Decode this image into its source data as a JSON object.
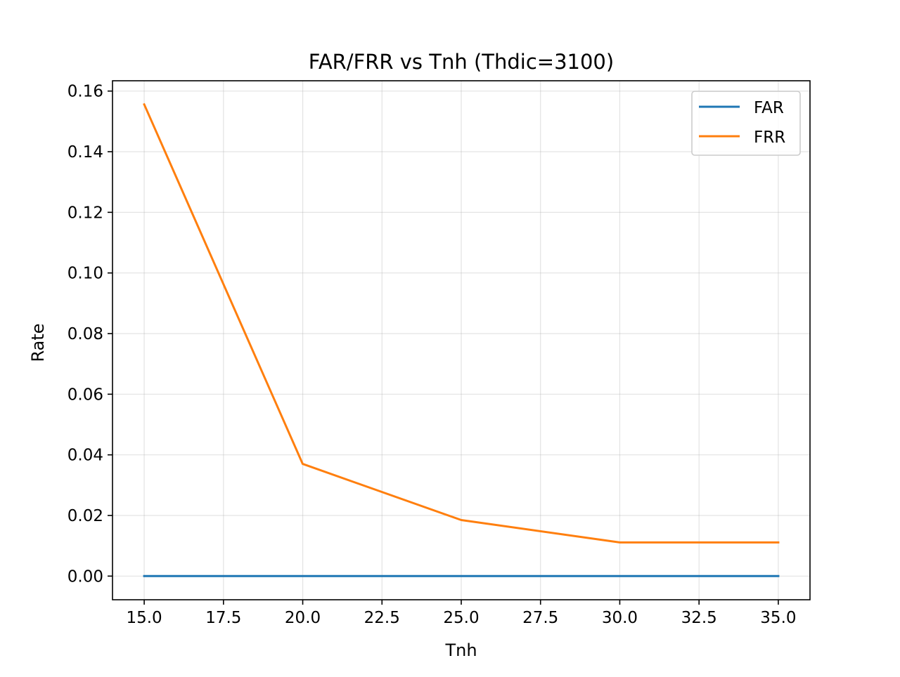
{
  "chart_data": {
    "type": "line",
    "title": "FAR/FRR vs Tnh (Thdic=3100)",
    "xlabel": "Tnh",
    "ylabel": "Rate",
    "x": [
      15,
      20,
      25,
      30,
      35
    ],
    "series": [
      {
        "name": "FAR",
        "color": "#1f77b4",
        "values": [
          0,
          0,
          0,
          0,
          0
        ]
      },
      {
        "name": "FRR",
        "color": "#ff7f0e",
        "values": [
          0.1556,
          0.037,
          0.0185,
          0.0111,
          0.0111
        ]
      }
    ],
    "xlim": [
      14,
      36
    ],
    "ylim": [
      -0.0078,
      0.1634
    ],
    "xticks": [
      15.0,
      17.5,
      20.0,
      22.5,
      25.0,
      27.5,
      30.0,
      32.5,
      35.0
    ],
    "xtick_labels": [
      "15.0",
      "17.5",
      "20.0",
      "22.5",
      "25.0",
      "27.5",
      "30.0",
      "32.5",
      "35.0"
    ],
    "yticks": [
      0.0,
      0.02,
      0.04,
      0.06,
      0.08,
      0.1,
      0.12,
      0.14,
      0.16
    ],
    "ytick_labels": [
      "0.00",
      "0.02",
      "0.04",
      "0.06",
      "0.08",
      "0.10",
      "0.12",
      "0.14",
      "0.16"
    ],
    "grid": true,
    "legend_position": "top-right"
  }
}
